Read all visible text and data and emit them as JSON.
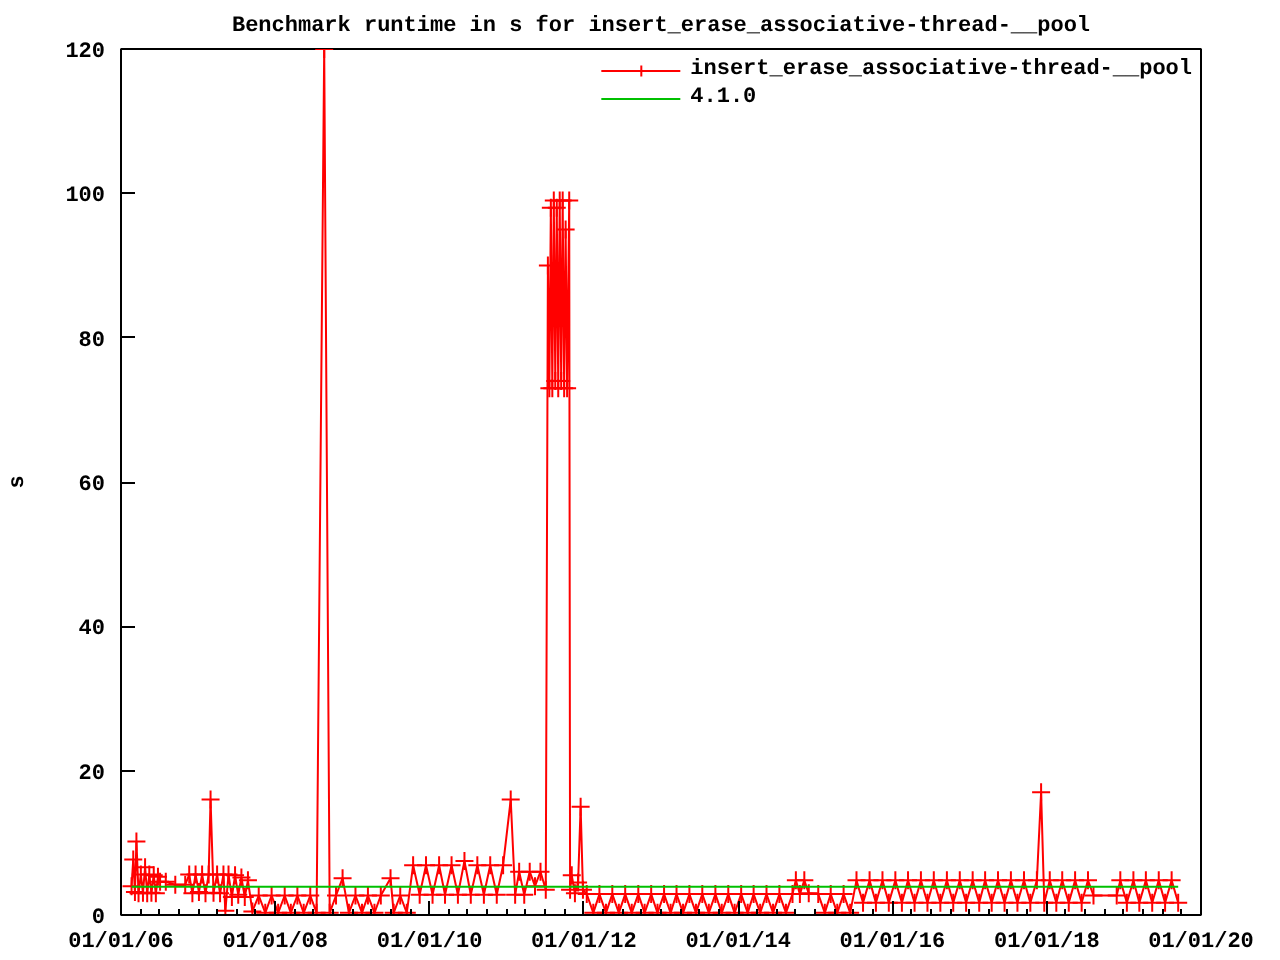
{
  "chart_data": {
    "type": "line",
    "title": "Benchmark runtime in s for insert_erase_associative-thread-__pool",
    "ylabel": "s",
    "xlim": [
      "2006-01-01",
      "2020-01-01"
    ],
    "ylim": [
      0,
      120
    ],
    "yticks": [
      0,
      20,
      40,
      60,
      80,
      100,
      120
    ],
    "xticks": [
      {
        "value": "2006-01-01",
        "label": "01/01/06"
      },
      {
        "value": "2006-04-01",
        "label": null
      },
      {
        "value": "2006-07-01",
        "label": null
      },
      {
        "value": "2006-10-01",
        "label": null
      },
      {
        "value": "2007-01-01",
        "label": null
      },
      {
        "value": "2007-04-01",
        "label": null
      },
      {
        "value": "2007-07-01",
        "label": null
      },
      {
        "value": "2007-10-01",
        "label": null
      },
      {
        "value": "2008-01-01",
        "label": "01/01/08"
      },
      {
        "value": "2008-04-01",
        "label": null
      },
      {
        "value": "2008-07-01",
        "label": null
      },
      {
        "value": "2008-10-01",
        "label": null
      },
      {
        "value": "2009-01-01",
        "label": null
      },
      {
        "value": "2009-04-01",
        "label": null
      },
      {
        "value": "2009-07-01",
        "label": null
      },
      {
        "value": "2009-10-01",
        "label": null
      },
      {
        "value": "2010-01-01",
        "label": "01/01/10"
      },
      {
        "value": "2010-04-01",
        "label": null
      },
      {
        "value": "2010-07-01",
        "label": null
      },
      {
        "value": "2010-10-01",
        "label": null
      },
      {
        "value": "2011-01-01",
        "label": null
      },
      {
        "value": "2011-04-01",
        "label": null
      },
      {
        "value": "2011-07-01",
        "label": null
      },
      {
        "value": "2011-10-01",
        "label": null
      },
      {
        "value": "2012-01-01",
        "label": "01/01/12"
      },
      {
        "value": "2012-04-01",
        "label": null
      },
      {
        "value": "2012-07-01",
        "label": null
      },
      {
        "value": "2012-10-01",
        "label": null
      },
      {
        "value": "2013-01-01",
        "label": null
      },
      {
        "value": "2013-04-01",
        "label": null
      },
      {
        "value": "2013-07-01",
        "label": null
      },
      {
        "value": "2013-10-01",
        "label": null
      },
      {
        "value": "2014-01-01",
        "label": "01/01/14"
      },
      {
        "value": "2014-04-01",
        "label": null
      },
      {
        "value": "2014-07-01",
        "label": null
      },
      {
        "value": "2014-10-01",
        "label": null
      },
      {
        "value": "2015-01-01",
        "label": null
      },
      {
        "value": "2015-04-01",
        "label": null
      },
      {
        "value": "2015-07-01",
        "label": null
      },
      {
        "value": "2015-10-01",
        "label": null
      },
      {
        "value": "2016-01-01",
        "label": "01/01/16"
      },
      {
        "value": "2016-04-01",
        "label": null
      },
      {
        "value": "2016-07-01",
        "label": null
      },
      {
        "value": "2016-10-01",
        "label": null
      },
      {
        "value": "2017-01-01",
        "label": null
      },
      {
        "value": "2017-04-01",
        "label": null
      },
      {
        "value": "2017-07-01",
        "label": null
      },
      {
        "value": "2017-10-01",
        "label": null
      },
      {
        "value": "2018-01-01",
        "label": "01/01/18"
      },
      {
        "value": "2018-04-01",
        "label": null
      },
      {
        "value": "2018-07-01",
        "label": null
      },
      {
        "value": "2018-10-01",
        "label": null
      },
      {
        "value": "2019-01-01",
        "label": null
      },
      {
        "value": "2019-04-01",
        "label": null
      },
      {
        "value": "2019-07-01",
        "label": null
      },
      {
        "value": "2019-10-01",
        "label": null
      },
      {
        "value": "2020-01-01",
        "label": "01/01/20"
      }
    ],
    "grid": false,
    "legend": "top right",
    "line_style": "solid",
    "series": [
      {
        "name": "insert_erase_associative-thread-__pool",
        "color": "#ff0000",
        "marker": "cross",
        "x": [
          "2006-02-20",
          "2006-02-28",
          "2006-03-08",
          "2006-03-15",
          "2006-03-25",
          "2006-04-05",
          "2006-04-15",
          "2006-04-25",
          "2006-05-05",
          "2006-05-15",
          "2006-05-25",
          "2006-06-05",
          "2006-06-15",
          "2006-06-25",
          "2006-07-05",
          "2006-08-01",
          "2006-09-15",
          "2006-11-01",
          "2006-11-20",
          "2006-12-05",
          "2006-12-20",
          "2007-01-05",
          "2007-01-20",
          "2007-02-05",
          "2007-02-20",
          "2007-03-01",
          "2007-03-15",
          "2007-04-01",
          "2007-04-15",
          "2007-05-01",
          "2007-05-10",
          "2007-05-25",
          "2007-06-10",
          "2007-06-25",
          "2007-07-10",
          "2007-07-25",
          "2007-08-10",
          "2007-08-25",
          "2007-09-15",
          "2007-10-15",
          "2007-11-15",
          "2007-12-15",
          "2008-01-15",
          "2008-02-15",
          "2008-03-15",
          "2008-04-15",
          "2008-05-15",
          "2008-06-15",
          "2008-07-15",
          "2008-08-20",
          "2008-09-15",
          "2008-10-15",
          "2008-11-15",
          "2008-12-15",
          "2009-01-15",
          "2009-02-15",
          "2009-03-15",
          "2009-04-15",
          "2009-05-15",
          "2009-06-30",
          "2009-07-15",
          "2009-08-15",
          "2009-09-15",
          "2009-10-15",
          "2009-11-15",
          "2009-12-15",
          "2010-01-15",
          "2010-02-15",
          "2010-03-15",
          "2010-04-15",
          "2010-05-15",
          "2010-06-15",
          "2010-07-15",
          "2010-08-15",
          "2010-09-15",
          "2010-10-15",
          "2010-11-15",
          "2010-12-15",
          "2011-01-20",
          "2011-02-10",
          "2011-03-01",
          "2011-03-25",
          "2011-04-20",
          "2011-05-15",
          "2011-06-10",
          "2011-07-05",
          "2011-07-15",
          "2011-07-22",
          "2011-07-29",
          "2011-08-05",
          "2011-08-12",
          "2011-08-19",
          "2011-08-26",
          "2011-09-02",
          "2011-09-09",
          "2011-09-16",
          "2011-09-23",
          "2011-09-30",
          "2011-10-07",
          "2011-10-14",
          "2011-10-24",
          "2011-10-28",
          "2011-11-05",
          "2011-11-20",
          "2011-12-05",
          "2011-12-17",
          "2011-12-28",
          "2012-01-15",
          "2012-02-15",
          "2012-03-15",
          "2012-04-15",
          "2012-05-15",
          "2012-06-15",
          "2012-07-15",
          "2012-08-15",
          "2012-09-15",
          "2012-10-15",
          "2012-11-15",
          "2012-12-15",
          "2013-01-15",
          "2013-02-15",
          "2013-03-15",
          "2013-04-15",
          "2013-05-15",
          "2013-06-15",
          "2013-07-15",
          "2013-08-15",
          "2013-09-15",
          "2013-10-15",
          "2013-11-15",
          "2013-12-15",
          "2014-01-15",
          "2014-02-15",
          "2014-03-15",
          "2014-04-15",
          "2014-05-15",
          "2014-06-15",
          "2014-07-15",
          "2014-08-15",
          "2014-09-15",
          "2014-10-01",
          "2014-10-20",
          "2014-11-10",
          "2014-12-01",
          "2015-01-15",
          "2015-02-15",
          "2015-03-15",
          "2015-04-15",
          "2015-05-15",
          "2015-06-15",
          "2015-07-15",
          "2015-08-15",
          "2015-09-15",
          "2015-10-15",
          "2015-11-15",
          "2015-12-15",
          "2016-01-15",
          "2016-02-15",
          "2016-03-15",
          "2016-04-15",
          "2016-05-15",
          "2016-06-15",
          "2016-07-15",
          "2016-08-15",
          "2016-09-15",
          "2016-10-15",
          "2016-11-15",
          "2016-12-15",
          "2017-01-15",
          "2017-02-15",
          "2017-03-15",
          "2017-04-15",
          "2017-05-15",
          "2017-06-15",
          "2017-07-15",
          "2017-08-15",
          "2017-09-15",
          "2017-10-15",
          "2017-11-15",
          "2017-12-05",
          "2017-12-20",
          "2018-01-15",
          "2018-02-15",
          "2018-03-15",
          "2018-04-15",
          "2018-05-15",
          "2018-06-15",
          "2018-07-15",
          "2018-08-10",
          "2018-11-28",
          "2018-12-15",
          "2019-01-15",
          "2019-02-15",
          "2019-03-15",
          "2019-04-15",
          "2019-05-15",
          "2019-06-15",
          "2019-07-15",
          "2019-08-15",
          "2019-09-15"
        ],
        "values": [
          4.0,
          7.7,
          3.2,
          10.2,
          3.0,
          5.6,
          3.1,
          6.6,
          3.0,
          5.6,
          3.1,
          5.5,
          3.0,
          5.3,
          4.6,
          4.6,
          4.2,
          4.2,
          5.6,
          3.0,
          5.6,
          3.2,
          5.6,
          3.0,
          5.6,
          16.0,
          3.1,
          5.6,
          3.0,
          5.6,
          0.6,
          5.6,
          2.5,
          5.5,
          2.8,
          5.2,
          2.5,
          4.8,
          0.5,
          2.7,
          0.3,
          2.7,
          0.3,
          2.7,
          0.3,
          2.7,
          0.3,
          2.7,
          0.3,
          120,
          0.3,
          2.7,
          5.1,
          0.3,
          2.7,
          0.3,
          2.7,
          0.3,
          2.7,
          5.1,
          0.3,
          2.7,
          0.3,
          6.9,
          2.8,
          6.9,
          2.8,
          6.9,
          2.8,
          6.9,
          2.8,
          7.5,
          2.8,
          6.9,
          2.8,
          6.9,
          2.8,
          6.9,
          16.0,
          2.8,
          6.0,
          2.8,
          6.0,
          4.0,
          6.0,
          3.5,
          90,
          73,
          98,
          73,
          99,
          74,
          98,
          73,
          99,
          74,
          99,
          73,
          95,
          73,
          99,
          3.5,
          5.5,
          3.0,
          4.5,
          15.0,
          3.5,
          2.9,
          0.3,
          2.9,
          0.3,
          2.9,
          0.3,
          2.9,
          0.3,
          2.9,
          0.3,
          2.9,
          0.3,
          2.9,
          0.3,
          2.9,
          0.3,
          2.9,
          0.3,
          2.9,
          0.3,
          2.9,
          0.3,
          2.9,
          0.3,
          2.9,
          0.3,
          2.9,
          0.3,
          2.9,
          0.3,
          2.9,
          0.3,
          2.9,
          4.8,
          2.9,
          4.8,
          3.0,
          2.9,
          0.3,
          2.9,
          0.3,
          2.9,
          0.3,
          4.8,
          1.7,
          4.8,
          1.7,
          4.8,
          1.7,
          4.8,
          1.7,
          4.8,
          1.7,
          4.8,
          1.7,
          4.8,
          1.7,
          4.8,
          1.7,
          4.8,
          1.7,
          4.8,
          1.7,
          4.8,
          1.7,
          4.8,
          1.7,
          4.8,
          1.7,
          4.8,
          1.7,
          4.8,
          17.0,
          1.7,
          4.8,
          1.7,
          4.8,
          1.7,
          4.8,
          1.7,
          4.8,
          2.7,
          2.7,
          4.8,
          1.7,
          4.8,
          1.7,
          4.8,
          1.7,
          4.8,
          1.7,
          4.8,
          1.7
        ]
      },
      {
        "name": "4.1.0",
        "color": "#00c000",
        "marker": "none",
        "x": [
          "2006-02-20",
          "2019-09-15"
        ],
        "values": [
          3.9,
          3.9
        ]
      }
    ]
  }
}
